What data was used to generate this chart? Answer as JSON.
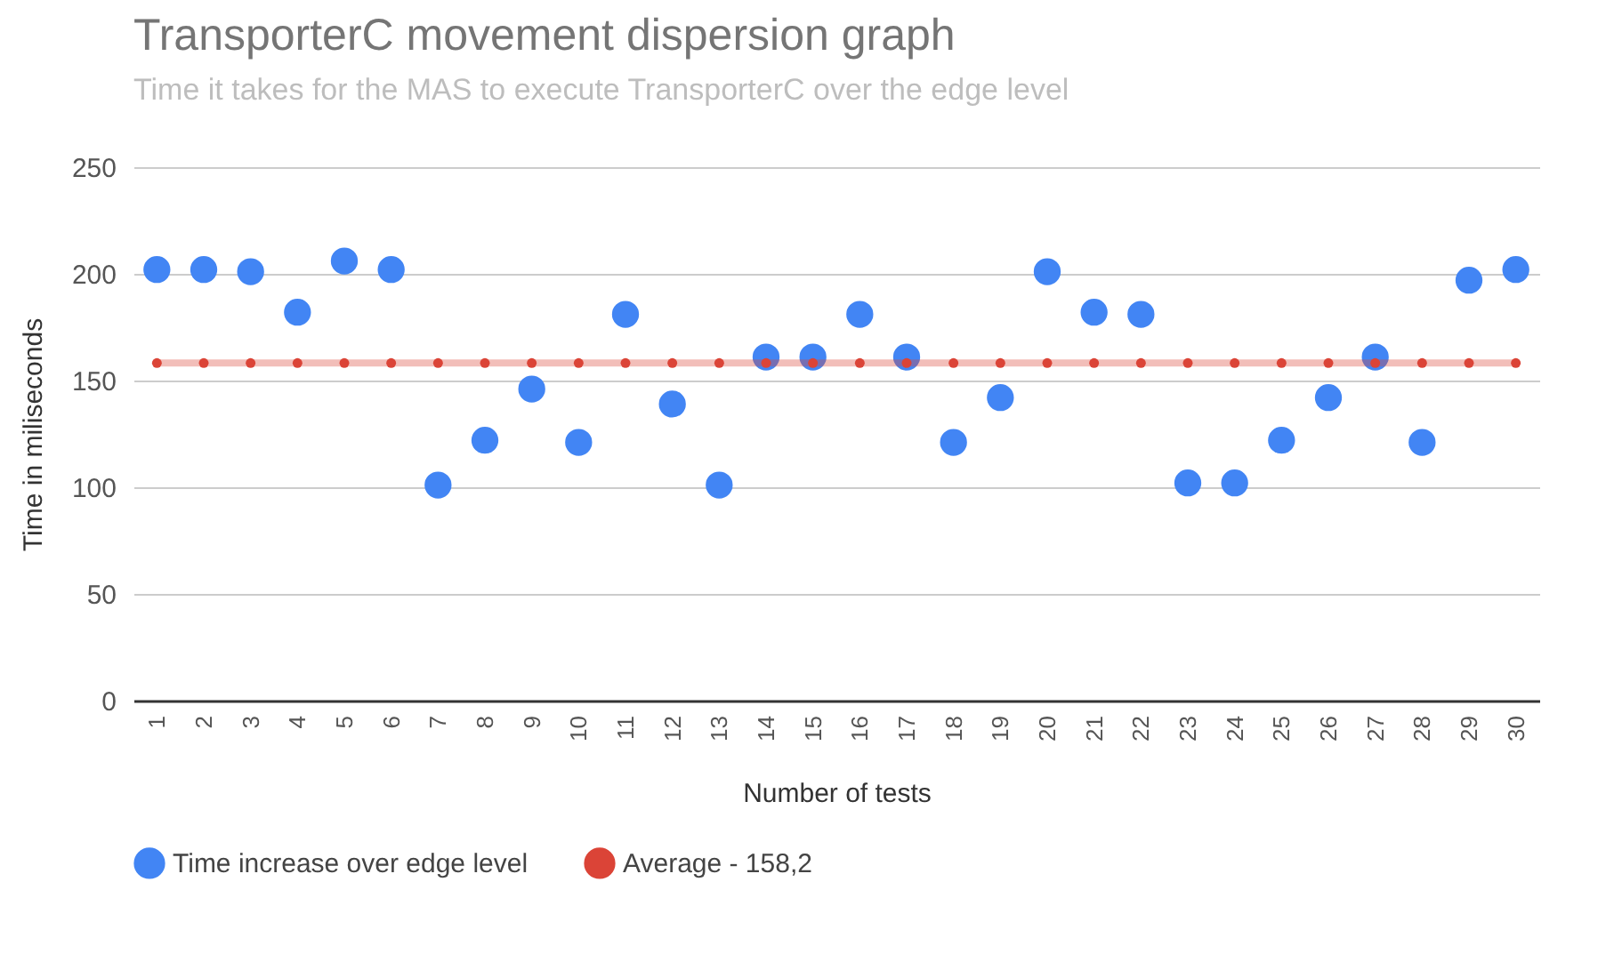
{
  "chart_data": {
    "type": "scatter",
    "title": "TransporterC movement dispersion graph",
    "subtitle": "Time it takes for the MAS to execute TransporterC over the edge level",
    "xlabel": "Number of tests",
    "ylabel": "Time in miliseconds",
    "categories": [
      "1",
      "2",
      "3",
      "4",
      "5",
      "6",
      "7",
      "8",
      "9",
      "10",
      "11",
      "12",
      "13",
      "14",
      "15",
      "16",
      "17",
      "18",
      "19",
      "20",
      "21",
      "22",
      "23",
      "24",
      "25",
      "26",
      "27",
      "28",
      "29",
      "30"
    ],
    "series": [
      {
        "name": "Time increase over edge level",
        "color": "#4285f4",
        "values": [
          202,
          202,
          201,
          182,
          206,
          202,
          101,
          122,
          146,
          121,
          181,
          139,
          101,
          161,
          161,
          181,
          161,
          121,
          142,
          201,
          182,
          181,
          102,
          102,
          122,
          142,
          161,
          121,
          197,
          202
        ]
      },
      {
        "name": "Average - 158,2",
        "type": "line",
        "color": "#db4437",
        "values": [
          158.2,
          158.2,
          158.2,
          158.2,
          158.2,
          158.2,
          158.2,
          158.2,
          158.2,
          158.2,
          158.2,
          158.2,
          158.2,
          158.2,
          158.2,
          158.2,
          158.2,
          158.2,
          158.2,
          158.2,
          158.2,
          158.2,
          158.2,
          158.2,
          158.2,
          158.2,
          158.2,
          158.2,
          158.2,
          158.2
        ]
      }
    ],
    "ylim": [
      0,
      250
    ],
    "yticks": [
      0,
      50,
      100,
      150,
      200,
      250
    ],
    "grid": "y",
    "legend": "bottom",
    "marker": "circle"
  }
}
